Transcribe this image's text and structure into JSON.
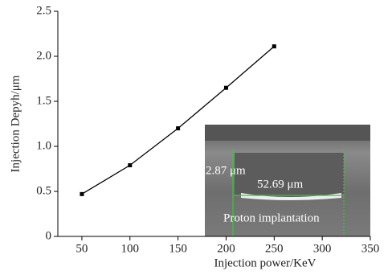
{
  "chart_data": {
    "type": "line",
    "x_label": "Injection power/KeV",
    "y_label": "Injection Depyh/μm",
    "x": [
      50,
      100,
      150,
      200,
      250
    ],
    "series": [
      {
        "color": "#000000",
        "values": [
          0.47,
          0.79,
          1.2,
          1.65,
          2.11
        ]
      }
    ],
    "xlim": [
      25,
      350
    ],
    "xticks": [
      50,
      100,
      150,
      200,
      250,
      300,
      350
    ],
    "ylim": [
      0,
      2.5
    ],
    "yticks": [
      0,
      0.5,
      {
        "value": 1,
        "label": "1.0"
      },
      1.5,
      {
        "value": 2,
        "label": "2.0"
      },
      2.5
    ],
    "annotations": [
      "2.87 μm",
      "52.69 μm",
      "Proton implantation"
    ]
  }
}
